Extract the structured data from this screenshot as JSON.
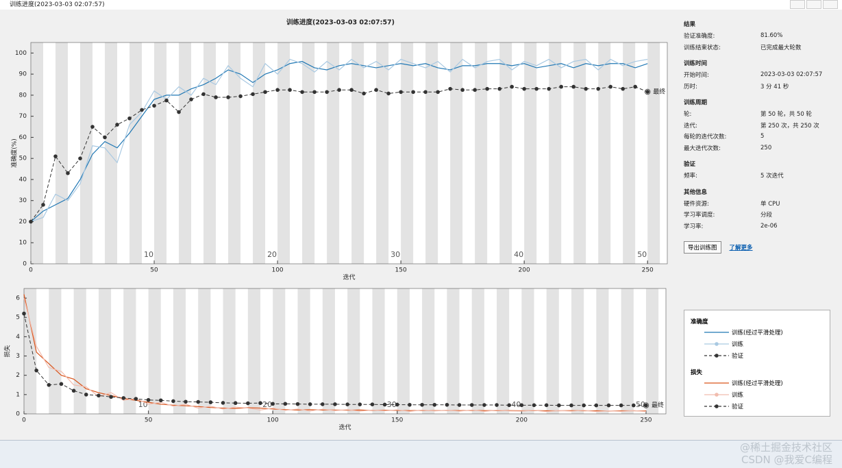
{
  "window": {
    "title": "训练进度(2023-03-03 02:07:57)"
  },
  "title": "训练进度(2023-03-03 02:07:57)",
  "info": [
    {
      "heading": "结果",
      "rows": [
        [
          "验证准确度:",
          "81.60%"
        ],
        [
          "训练结束状态:",
          "已完成最大轮数"
        ]
      ]
    },
    {
      "heading": "训练时间",
      "rows": [
        [
          "开始时间:",
          "2023-03-03 02:07:57"
        ],
        [
          "历时:",
          "3 分 41 秒"
        ]
      ]
    },
    {
      "heading": "训练周期",
      "rows": [
        [
          "轮:",
          "第 50 轮，共 50 轮"
        ],
        [
          "迭代:",
          "第 250 次，共 250 次"
        ],
        [
          "每轮的迭代次数:",
          "5"
        ],
        [
          "最大迭代次数:",
          "250"
        ]
      ]
    },
    {
      "heading": "验证",
      "rows": [
        [
          "频率:",
          "5 次迭代"
        ]
      ]
    },
    {
      "heading": "其他信息",
      "rows": [
        [
          "硬件资源:",
          "单 CPU"
        ],
        [
          "学习率调度:",
          "分段"
        ],
        [
          "学习率:",
          "2e-06"
        ]
      ]
    }
  ],
  "buttons": [
    "导出训练图",
    "了解更多"
  ],
  "watermarks": [
    "@稀土掘金技术社区",
    "CSDN @我爱C编程"
  ],
  "chart_data": [
    {
      "type": "line",
      "legend_title": "准确度",
      "xlabel": "迭代",
      "ylabel": "准确度(%)",
      "final_label": "最终",
      "xlim": [
        0,
        258
      ],
      "ylim": [
        0,
        105
      ],
      "xticks": [
        0,
        50,
        100,
        150,
        200,
        250
      ],
      "yticks": [
        0,
        10,
        20,
        30,
        40,
        50,
        60,
        70,
        80,
        90,
        100
      ],
      "epoch_ticks": [
        {
          "value": 50,
          "label": "10"
        },
        {
          "value": 100,
          "label": "20"
        },
        {
          "value": 150,
          "label": "30"
        },
        {
          "value": 200,
          "label": "40"
        },
        {
          "value": 250,
          "label": "50"
        }
      ],
      "x": [
        0,
        5,
        10,
        15,
        20,
        25,
        30,
        35,
        40,
        45,
        50,
        55,
        60,
        65,
        70,
        75,
        80,
        85,
        90,
        95,
        100,
        105,
        110,
        115,
        120,
        125,
        130,
        135,
        140,
        145,
        150,
        155,
        160,
        165,
        170,
        175,
        180,
        185,
        190,
        195,
        200,
        205,
        210,
        215,
        220,
        225,
        230,
        235,
        240,
        245,
        250
      ],
      "series": [
        {
          "name": "训练(经过平滑处理)",
          "color": "#1f77b4",
          "style": "solid",
          "markers": false,
          "values": [
            20,
            25,
            28,
            31,
            40,
            52,
            58,
            55,
            62,
            70,
            78,
            80,
            80,
            83,
            85,
            88,
            92,
            90,
            86,
            90,
            92,
            95,
            96,
            93,
            92,
            94,
            95,
            94,
            93,
            94,
            95,
            94,
            95,
            93,
            92,
            94,
            94,
            95,
            95,
            94,
            95,
            93,
            94,
            95,
            93,
            95,
            94,
            95,
            95,
            93,
            95
          ]
        },
        {
          "name": "训练",
          "color": "#a9c9e2",
          "style": "solid",
          "markers": false,
          "values": [
            20,
            22,
            33,
            30,
            38,
            56,
            55,
            48,
            66,
            72,
            82,
            78,
            84,
            80,
            88,
            85,
            94,
            88,
            84,
            95,
            90,
            97,
            95,
            91,
            96,
            92,
            97,
            93,
            96,
            92,
            97,
            95,
            93,
            96,
            91,
            97,
            93,
            96,
            97,
            92,
            96,
            94,
            97,
            93,
            96,
            97,
            92,
            97,
            94,
            96,
            97
          ]
        },
        {
          "name": "验证",
          "color": "#333333",
          "style": "dashed",
          "markers": true,
          "values": [
            20,
            28,
            51,
            43,
            50,
            65,
            60,
            66,
            69,
            73,
            75,
            77.5,
            72,
            78,
            80.5,
            79,
            79,
            79.5,
            80.5,
            81.5,
            82.5,
            82.5,
            81.5,
            81.5,
            81.5,
            82.5,
            82.5,
            80.8,
            82.5,
            80.8,
            81.5,
            81.5,
            81.5,
            81.5,
            83,
            82.5,
            82.5,
            83,
            83,
            84,
            83,
            83,
            83,
            84,
            84,
            83,
            83,
            84,
            83,
            84,
            81.6
          ]
        }
      ]
    },
    {
      "type": "line",
      "legend_title": "损失",
      "xlabel": "迭代",
      "ylabel": "损失",
      "final_label": "最终",
      "xlim": [
        0,
        258
      ],
      "ylim": [
        0,
        6.5
      ],
      "xticks": [
        0,
        50,
        100,
        150,
        200,
        250
      ],
      "yticks": [
        0,
        1,
        2,
        3,
        4,
        5,
        6
      ],
      "epoch_ticks": [
        {
          "value": 50,
          "label": "10"
        },
        {
          "value": 100,
          "label": "20"
        },
        {
          "value": 150,
          "label": "30"
        },
        {
          "value": 200,
          "label": "40"
        },
        {
          "value": 250,
          "label": "50"
        }
      ],
      "x": [
        0,
        5,
        10,
        15,
        20,
        25,
        30,
        35,
        40,
        45,
        50,
        55,
        60,
        65,
        70,
        75,
        80,
        85,
        90,
        95,
        100,
        105,
        110,
        115,
        120,
        125,
        130,
        135,
        140,
        145,
        150,
        155,
        160,
        165,
        170,
        175,
        180,
        185,
        190,
        195,
        200,
        205,
        210,
        215,
        220,
        225,
        230,
        235,
        240,
        245,
        250
      ],
      "series": [
        {
          "name": "训练(经过平滑处理)",
          "color": "#d95319",
          "style": "solid",
          "markers": false,
          "values": [
            6.2,
            3.2,
            2.6,
            2.0,
            1.8,
            1.3,
            1.1,
            0.95,
            0.8,
            0.7,
            0.6,
            0.5,
            0.45,
            0.42,
            0.38,
            0.33,
            0.3,
            0.28,
            0.32,
            0.3,
            0.25,
            0.22,
            0.2,
            0.22,
            0.2,
            0.2,
            0.19,
            0.2,
            0.18,
            0.19,
            0.18,
            0.17,
            0.18,
            0.17,
            0.18,
            0.17,
            0.18,
            0.17,
            0.17,
            0.17,
            0.16,
            0.17,
            0.16,
            0.16,
            0.17,
            0.16,
            0.16,
            0.15,
            0.16,
            0.16,
            0.15
          ]
        },
        {
          "name": "训练",
          "color": "#f1bcae",
          "style": "solid",
          "markers": false,
          "values": [
            6.0,
            3.5,
            2.4,
            2.2,
            1.5,
            1.4,
            0.9,
            1.1,
            0.7,
            0.8,
            0.5,
            0.6,
            0.4,
            0.5,
            0.3,
            0.4,
            0.25,
            0.35,
            0.3,
            0.2,
            0.3,
            0.18,
            0.25,
            0.15,
            0.24,
            0.17,
            0.22,
            0.14,
            0.2,
            0.16,
            0.21,
            0.13,
            0.2,
            0.15,
            0.19,
            0.14,
            0.2,
            0.13,
            0.19,
            0.15,
            0.14,
            0.18,
            0.12,
            0.17,
            0.14,
            0.18,
            0.12,
            0.16,
            0.13,
            0.17,
            0.12
          ]
        },
        {
          "name": "验证",
          "color": "#333333",
          "style": "dashed",
          "markers": true,
          "values": [
            5.2,
            2.25,
            1.5,
            1.55,
            1.2,
            1.0,
            0.95,
            0.88,
            0.82,
            0.78,
            0.72,
            0.7,
            0.66,
            0.63,
            0.62,
            0.6,
            0.57,
            0.56,
            0.55,
            0.56,
            0.52,
            0.52,
            0.51,
            0.5,
            0.5,
            0.5,
            0.49,
            0.49,
            0.49,
            0.48,
            0.48,
            0.47,
            0.47,
            0.47,
            0.47,
            0.46,
            0.46,
            0.46,
            0.46,
            0.45,
            0.45,
            0.45,
            0.45,
            0.44,
            0.44,
            0.44,
            0.44,
            0.44,
            0.44,
            0.44,
            0.44
          ]
        }
      ]
    }
  ]
}
